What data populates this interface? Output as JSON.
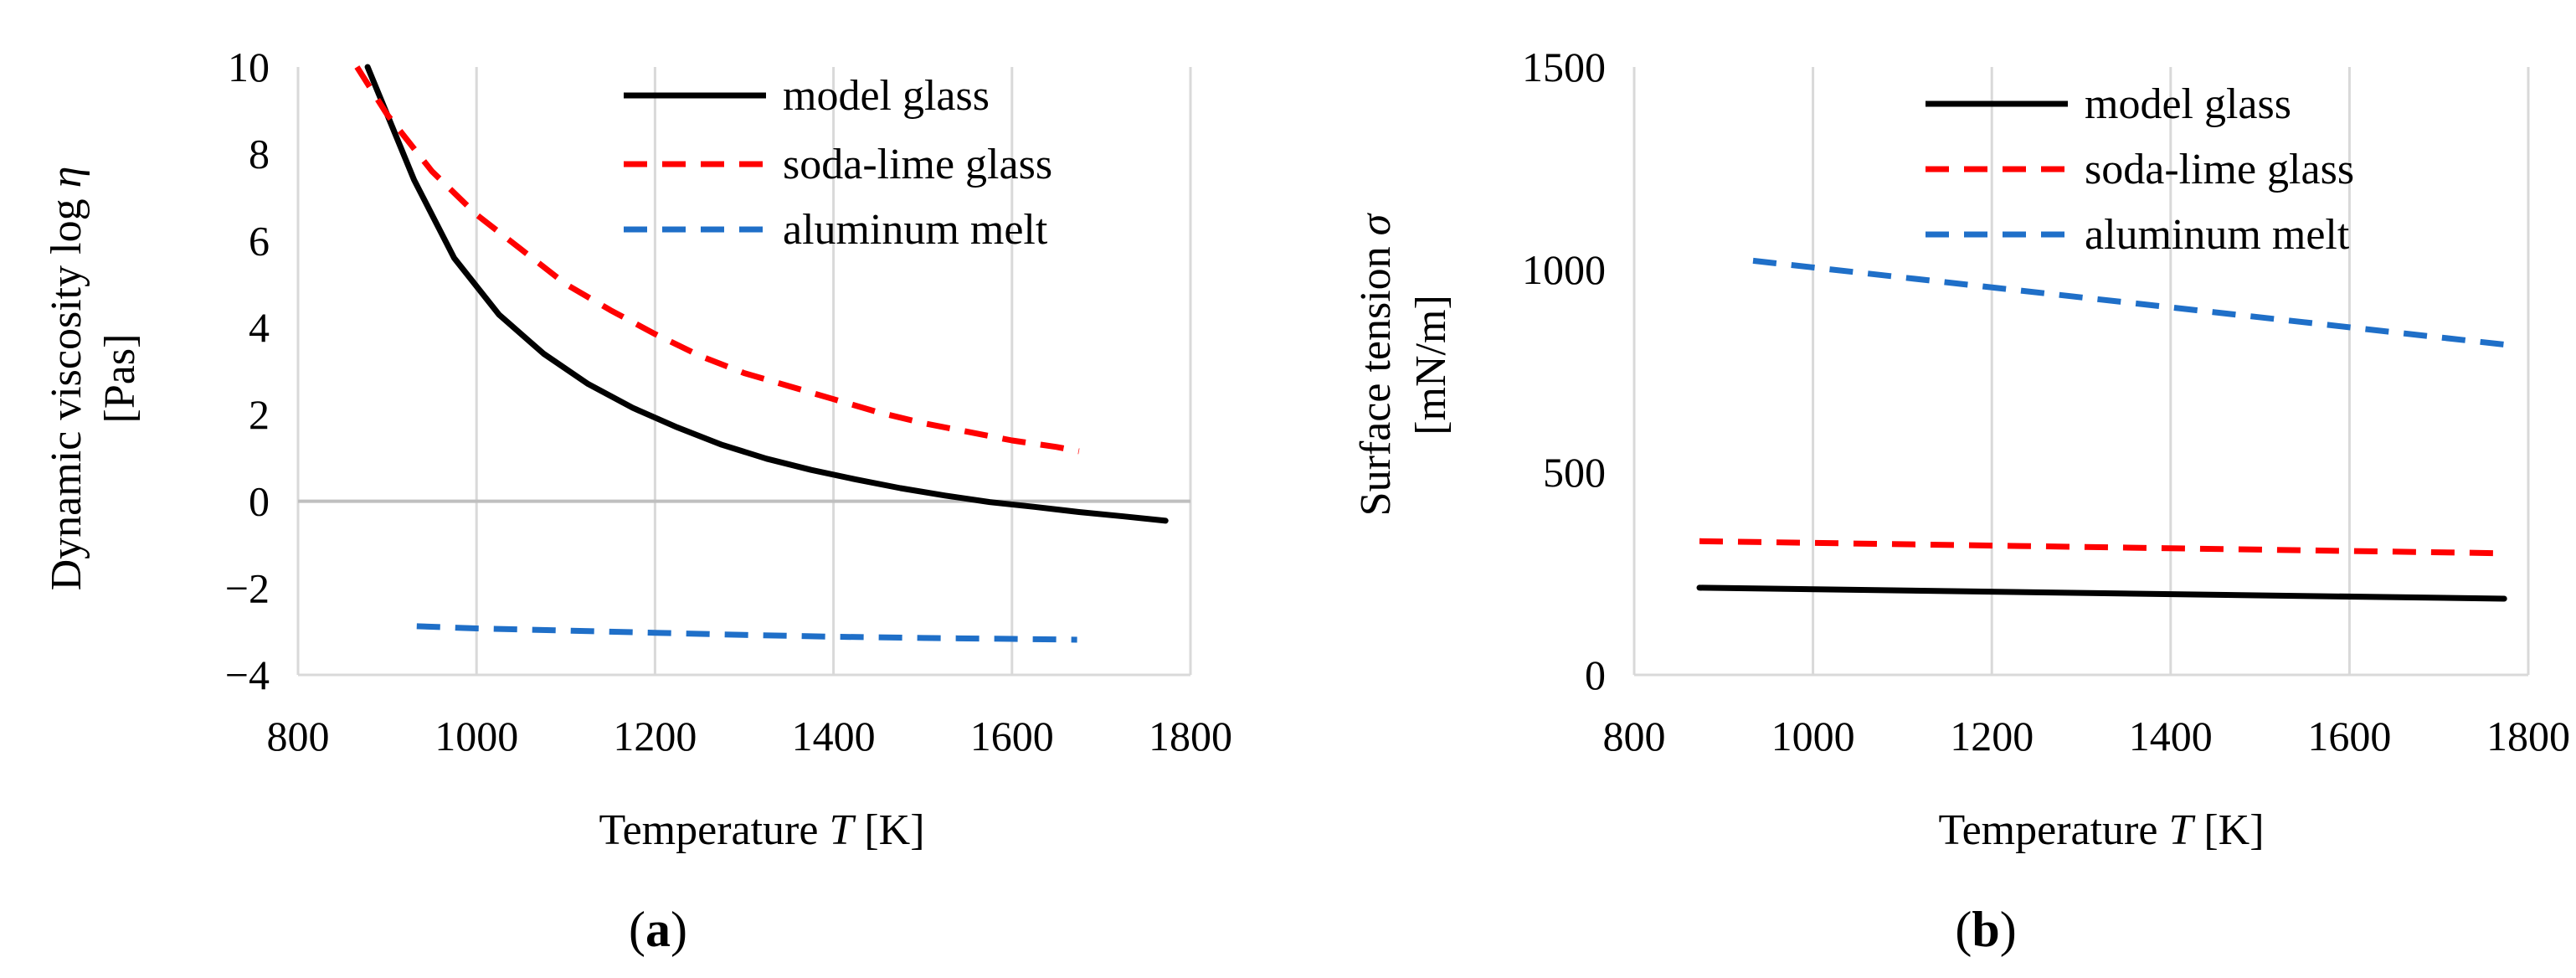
{
  "figure": {
    "captions": [
      "(",
      "a",
      ")",
      "(",
      "b",
      ")"
    ]
  },
  "chart_data": [
    {
      "type": "line",
      "panel_caption": "(a)",
      "xlabel": "Temperature T [K]",
      "xlabel_parts": {
        "prefix": "Temperature ",
        "symbol": "T",
        "suffix": " [K]"
      },
      "ylabel": "Dynamic viscosity log η [Pas]",
      "ylabel_parts": {
        "line1_prefix": "Dynamic viscosity log ",
        "line1_symbol": "η",
        "line2": "[Pas]"
      },
      "xlim": [
        800,
        1800
      ],
      "ylim": [
        -4,
        10
      ],
      "xticks": [
        "800",
        "1000",
        "1200",
        "1400",
        "1600",
        "1800"
      ],
      "yticks": [
        "-4",
        "-2",
        "0",
        "2",
        "4",
        "6",
        "8",
        "10"
      ],
      "grid": "vertical",
      "legend_position": "top-right",
      "series": [
        {
          "name": "model glass",
          "color": "#000000",
          "style": "solid",
          "x": [
            878,
            900,
            930,
            975,
            1025,
            1075,
            1125,
            1175,
            1225,
            1275,
            1325,
            1375,
            1425,
            1475,
            1525,
            1575,
            1625,
            1675,
            1725,
            1772
          ],
          "y": [
            10.0,
            8.9,
            7.4,
            5.6,
            4.3,
            3.4,
            2.7,
            2.15,
            1.7,
            1.3,
            0.98,
            0.72,
            0.5,
            0.3,
            0.13,
            -0.02,
            -0.13,
            -0.25,
            -0.35,
            -0.45
          ]
        },
        {
          "name": "soda-lime glass",
          "color": "#ff0000",
          "style": "dashed",
          "x": [
            866,
            900,
            950,
            1000,
            1050,
            1100,
            1150,
            1200,
            1250,
            1300,
            1350,
            1400,
            1450,
            1500,
            1550,
            1600,
            1650,
            1675
          ],
          "y": [
            10.0,
            8.9,
            7.6,
            6.6,
            5.8,
            5.0,
            4.4,
            3.85,
            3.35,
            2.95,
            2.65,
            2.35,
            2.05,
            1.8,
            1.6,
            1.4,
            1.25,
            1.15
          ]
        },
        {
          "name": "aluminum melt",
          "color": "#1f6fc8",
          "style": "dashed",
          "x": [
            933,
            1000,
            1100,
            1200,
            1300,
            1400,
            1500,
            1600,
            1673
          ],
          "y": [
            -2.88,
            -2.93,
            -2.98,
            -3.03,
            -3.08,
            -3.12,
            -3.15,
            -3.17,
            -3.19
          ]
        }
      ]
    },
    {
      "type": "line",
      "panel_caption": "(b)",
      "xlabel": "Temperature T [K]",
      "xlabel_parts": {
        "prefix": "Temperature ",
        "symbol": "T",
        "suffix": " [K]"
      },
      "ylabel": "Surface tension σ [mN/m]",
      "ylabel_parts": {
        "line1_prefix": "Surface tension ",
        "line1_symbol": "σ",
        "line2": "[mN/m]"
      },
      "xlim": [
        800,
        1800
      ],
      "ylim": [
        0,
        1500
      ],
      "xticks": [
        "800",
        "1000",
        "1200",
        "1400",
        "1600",
        "1800"
      ],
      "yticks": [
        "0",
        "500",
        "1000",
        "1500"
      ],
      "grid": "vertical",
      "legend_position": "top-right",
      "series": [
        {
          "name": "model glass",
          "color": "#000000",
          "style": "solid",
          "x": [
            873,
            1773
          ],
          "y": [
            215,
            188
          ]
        },
        {
          "name": "soda-lime glass",
          "color": "#ff0000",
          "style": "dashed",
          "x": [
            873,
            1773
          ],
          "y": [
            330,
            300
          ]
        },
        {
          "name": "aluminum melt",
          "color": "#1f6fc8",
          "style": "dashed",
          "x": [
            933,
            1773
          ],
          "y": [
            1022,
            815
          ]
        }
      ]
    }
  ]
}
